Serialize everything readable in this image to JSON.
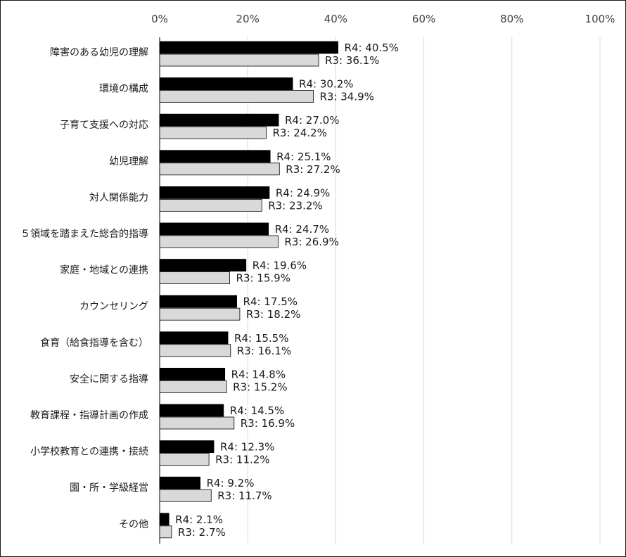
{
  "chart_data": {
    "type": "bar",
    "orientation": "horizontal",
    "title": "",
    "xlabel": "",
    "ylabel": "",
    "xlim": [
      0,
      100
    ],
    "ticks": [
      0,
      20,
      40,
      60,
      80,
      100
    ],
    "tick_format": "{v}%",
    "grid": true,
    "legend": "none",
    "categories": [
      "障害のある幼児の理解",
      "環境の構成",
      "子育て支援への対応",
      "幼児理解",
      "対人関係能力",
      "５領域を踏まえた総合的指導",
      "家庭・地域との連携",
      "カウンセリング",
      "食育（給食指導を含む）",
      "安全に関する指導",
      "教育課程・指導計画の作成",
      "小学校教育との連携・接続",
      "園・所・学級経営",
      "その他"
    ],
    "series": [
      {
        "name": "R4",
        "color": "#000000",
        "values": [
          40.5,
          30.2,
          27.0,
          25.1,
          24.9,
          24.7,
          19.6,
          17.5,
          15.5,
          14.8,
          14.5,
          12.3,
          9.2,
          2.1
        ]
      },
      {
        "name": "R3",
        "color": "#d9d9d9",
        "values": [
          36.1,
          34.9,
          24.2,
          27.2,
          23.2,
          26.9,
          15.9,
          18.2,
          16.1,
          15.2,
          16.9,
          11.2,
          11.7,
          2.7
        ]
      }
    ]
  }
}
